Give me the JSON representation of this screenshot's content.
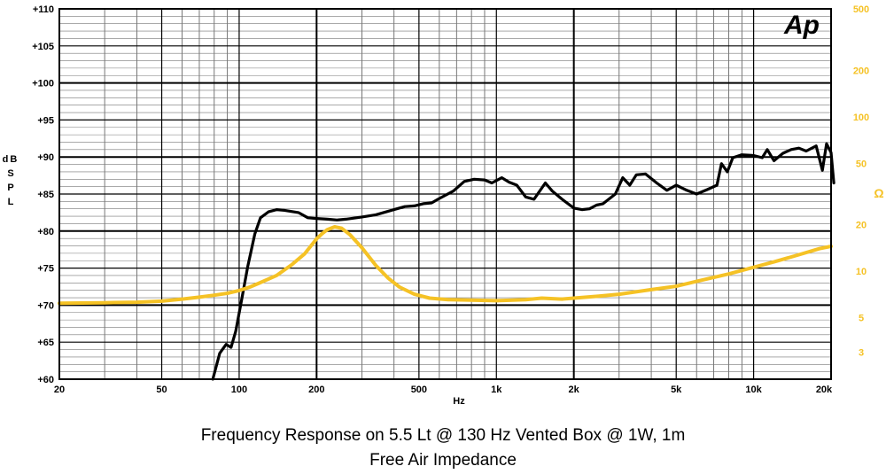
{
  "chart_data": {
    "type": "line",
    "title": "Frequency Response on 5.5 Lt @ 130 Hz Vented Box @ 1W, 1m",
    "subtitle": "Free Air Impedance",
    "xlabel": "Hz",
    "ylabel": "dB SPL",
    "y2label": "Ω",
    "logo": "Ap",
    "x_scale": "log",
    "xlim": [
      20,
      20000
    ],
    "ylim": [
      60,
      110
    ],
    "y2lim": [
      2,
      500
    ],
    "y2_scale": "log",
    "grid": true,
    "x_ticks": [
      {
        "value": 20,
        "label": "20"
      },
      {
        "value": 50,
        "label": "50"
      },
      {
        "value": 100,
        "label": "100"
      },
      {
        "value": 200,
        "label": "200"
      },
      {
        "value": 500,
        "label": "500"
      },
      {
        "value": 1000,
        "label": "1k"
      },
      {
        "value": 2000,
        "label": "2k"
      },
      {
        "value": 5000,
        "label": "5k"
      },
      {
        "value": 10000,
        "label": "10k"
      },
      {
        "value": 20000,
        "label": "20k"
      }
    ],
    "y_ticks": [
      {
        "value": 110,
        "label": "+110"
      },
      {
        "value": 105,
        "label": "+105"
      },
      {
        "value": 100,
        "label": "+100"
      },
      {
        "value": 95,
        "label": "+95"
      },
      {
        "value": 90,
        "label": "+90"
      },
      {
        "value": 85,
        "label": "+85"
      },
      {
        "value": 80,
        "label": "+80"
      },
      {
        "value": 75,
        "label": "+75"
      },
      {
        "value": 70,
        "label": "+70"
      },
      {
        "value": 65,
        "label": "+65"
      },
      {
        "value": 60,
        "label": "+60"
      }
    ],
    "y2_ticks": [
      {
        "value": 500,
        "label": "500"
      },
      {
        "value": 200,
        "label": "200"
      },
      {
        "value": 100,
        "label": "100"
      },
      {
        "value": 50,
        "label": "50"
      },
      {
        "value": 20,
        "label": "20"
      },
      {
        "value": 10,
        "label": "10"
      },
      {
        "value": 5,
        "label": "5"
      },
      {
        "value": 3,
        "label": "3"
      }
    ],
    "series": [
      {
        "axis": "left",
        "color": "#000000",
        "x": [
          79,
          84,
          89,
          93,
          97,
          102,
          108,
          115,
          121,
          130,
          140,
          150,
          170,
          185,
          200,
          220,
          240,
          260,
          300,
          340,
          400,
          440,
          480,
          520,
          560,
          600,
          680,
          750,
          820,
          900,
          960,
          1050,
          1120,
          1200,
          1300,
          1400,
          1550,
          1650,
          1800,
          2000,
          2150,
          2300,
          2450,
          2600,
          2900,
          3100,
          3300,
          3500,
          3800,
          4200,
          4600,
          5000,
          5500,
          6000,
          6600,
          7200,
          7500,
          7900,
          8300,
          9000,
          10000,
          10800,
          11300,
          12000,
          13000,
          14000,
          15000,
          16000,
          17500,
          18500,
          19200,
          20000,
          20500
        ],
        "values": [
          60.0,
          63.5,
          64.7,
          64.3,
          66.5,
          70.5,
          75.2,
          79.6,
          81.8,
          82.6,
          82.9,
          82.8,
          82.5,
          81.8,
          81.7,
          81.6,
          81.5,
          81.6,
          81.9,
          82.2,
          82.9,
          83.3,
          83.4,
          83.7,
          83.8,
          84.4,
          85.4,
          86.7,
          87.0,
          86.9,
          86.5,
          87.2,
          86.6,
          86.2,
          84.6,
          84.3,
          86.5,
          85.4,
          84.3,
          83.1,
          82.9,
          83.0,
          83.5,
          83.7,
          85.0,
          87.2,
          86.2,
          87.6,
          87.7,
          86.5,
          85.5,
          86.2,
          85.5,
          85.0,
          85.6,
          86.2,
          89.1,
          88.0,
          89.9,
          90.3,
          90.2,
          89.9,
          91.0,
          89.5,
          90.5,
          91.0,
          91.2,
          90.8,
          91.5,
          88.2,
          91.8,
          90.6,
          86.5
        ]
      },
      {
        "axis": "right",
        "color": "#f5c225",
        "x": [
          20,
          30,
          40,
          50,
          60,
          70,
          80,
          90,
          100,
          110,
          120,
          140,
          160,
          180,
          200,
          210,
          220,
          235,
          250,
          270,
          300,
          340,
          380,
          420,
          480,
          550,
          650,
          800,
          1000,
          1300,
          1500,
          1800,
          2000,
          2500,
          3000,
          4000,
          5000,
          6000,
          8000,
          10000,
          12000,
          15000,
          18000,
          20000
        ],
        "values": [
          6.2,
          6.25,
          6.3,
          6.4,
          6.6,
          6.8,
          7.0,
          7.2,
          7.5,
          7.9,
          8.4,
          9.4,
          11.0,
          13.0,
          16.2,
          17.5,
          18.6,
          19.4,
          19.0,
          17.2,
          14.2,
          10.9,
          9.0,
          7.9,
          7.1,
          6.7,
          6.55,
          6.5,
          6.45,
          6.55,
          6.7,
          6.6,
          6.7,
          6.9,
          7.1,
          7.6,
          8.0,
          8.6,
          9.6,
          10.6,
          11.5,
          12.8,
          14.0,
          14.5
        ]
      }
    ]
  }
}
